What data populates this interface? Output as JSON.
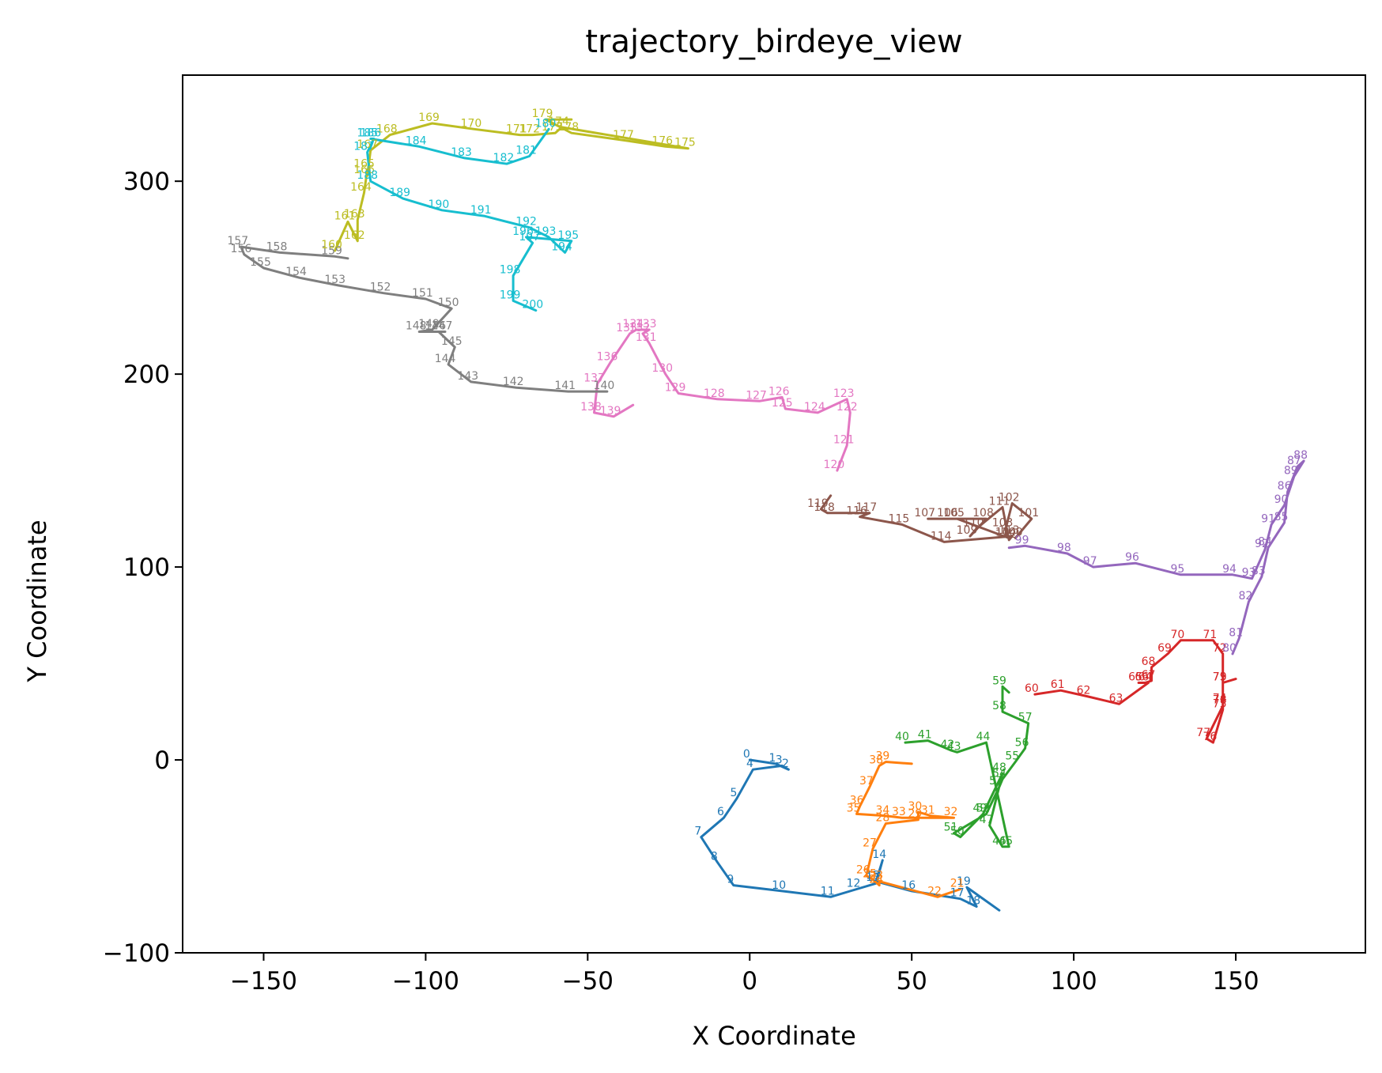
{
  "chart_data": {
    "type": "line",
    "title": "trajectory_birdeye_view",
    "xlabel": "X Coordinate",
    "ylabel": "Y Coordinate",
    "xlim": [
      -175,
      190
    ],
    "ylim": [
      -100,
      355
    ],
    "xticks": [
      -150,
      -100,
      -50,
      0,
      50,
      100,
      150
    ],
    "xtick_labels": [
      "−150",
      "−100",
      "−50",
      "0",
      "50",
      "100",
      "150"
    ],
    "yticks": [
      -100,
      0,
      100,
      200,
      300
    ],
    "ytick_labels": [
      "−100",
      "0",
      "100",
      "200",
      "300"
    ],
    "grid": false,
    "legend": "none",
    "series": [
      {
        "color": "#1f77b4",
        "points": [
          [
            0,
            0,
            "0"
          ],
          [
            8,
            -2,
            "1"
          ],
          [
            12,
            -5,
            "2"
          ],
          [
            10,
            -3,
            "3"
          ],
          [
            1,
            -5,
            "4"
          ],
          [
            -4,
            -20,
            "5"
          ],
          [
            -8,
            -30,
            "6"
          ],
          [
            -15,
            -40,
            "7"
          ],
          [
            -10,
            -53,
            "8"
          ],
          [
            -5,
            -65,
            "9"
          ],
          [
            10,
            -68,
            "10"
          ],
          [
            25,
            -71,
            "11"
          ],
          [
            33,
            -67,
            "12"
          ],
          [
            39,
            -64,
            "13"
          ],
          [
            41,
            -52,
            "14"
          ],
          [
            39,
            -63,
            "15"
          ],
          [
            50,
            -68,
            "16"
          ],
          [
            65,
            -72,
            "17"
          ],
          [
            70,
            -76,
            "18"
          ],
          [
            67,
            -66,
            "19"
          ],
          [
            77,
            -78,
            ""
          ]
        ]
      },
      {
        "color": "#ff7f0e",
        "points": [
          [
            65,
            -67,
            "21"
          ],
          [
            58,
            -71,
            "22"
          ],
          [
            40,
            -63,
            "23"
          ],
          [
            40,
            -65,
            "24"
          ],
          [
            38,
            -62,
            "25"
          ],
          [
            36,
            -60,
            "26"
          ],
          [
            38,
            -46,
            "27"
          ],
          [
            42,
            -33,
            "28"
          ],
          [
            52,
            -31,
            "29"
          ],
          [
            52,
            -27,
            "30"
          ],
          [
            56,
            -29,
            "31"
          ],
          [
            63,
            -30,
            "32"
          ],
          [
            47,
            -30,
            "33"
          ],
          [
            42,
            -29,
            "34"
          ],
          [
            33,
            -28,
            "35"
          ],
          [
            34,
            -24,
            "36"
          ],
          [
            37,
            -14,
            "37"
          ],
          [
            40,
            -3,
            "38"
          ],
          [
            42,
            -1,
            "39"
          ],
          [
            50,
            -2,
            ""
          ]
        ]
      },
      {
        "color": "#2ca02c",
        "points": [
          [
            48,
            9,
            "40"
          ],
          [
            55,
            10,
            "41"
          ],
          [
            62,
            5,
            "42"
          ],
          [
            64,
            4,
            "43"
          ],
          [
            73,
            9,
            "44"
          ],
          [
            80,
            -45,
            "45"
          ],
          [
            78,
            -45,
            "46"
          ],
          [
            74,
            -34,
            "47"
          ],
          [
            78,
            -7,
            "48"
          ],
          [
            72,
            -28,
            "49"
          ],
          [
            65,
            -40,
            "50"
          ],
          [
            63,
            -38,
            "51"
          ],
          [
            73,
            -28,
            "52"
          ],
          [
            77,
            -14,
            "53"
          ],
          [
            78,
            -10,
            "54"
          ],
          [
            82,
            -1,
            "55"
          ],
          [
            85,
            6,
            "56"
          ],
          [
            86,
            19,
            "57"
          ],
          [
            78,
            25,
            "58"
          ],
          [
            78,
            38,
            "59"
          ],
          [
            80,
            35,
            ""
          ]
        ]
      },
      {
        "color": "#d62728",
        "points": [
          [
            88,
            34,
            "60"
          ],
          [
            96,
            36,
            "61"
          ],
          [
            104,
            33,
            "62"
          ],
          [
            114,
            29,
            "63"
          ],
          [
            123,
            40,
            "64"
          ],
          [
            120,
            40,
            "65"
          ],
          [
            122,
            40,
            "66"
          ],
          [
            124,
            41,
            "67"
          ],
          [
            124,
            48,
            "68"
          ],
          [
            129,
            55,
            "69"
          ],
          [
            133,
            62,
            "70"
          ],
          [
            143,
            62,
            "71"
          ],
          [
            146,
            55,
            "72"
          ],
          [
            146,
            40,
            "73"
          ],
          [
            146,
            29,
            "74"
          ],
          [
            146,
            26,
            "75"
          ],
          [
            143,
            9,
            "76"
          ],
          [
            141,
            11,
            "77"
          ],
          [
            146,
            28,
            "78"
          ],
          [
            146,
            40,
            "79"
          ],
          [
            150,
            42,
            ""
          ]
        ]
      },
      {
        "color": "#9467bd",
        "points": [
          [
            149,
            55,
            "80"
          ],
          [
            151,
            63,
            "81"
          ],
          [
            154,
            82,
            "82"
          ],
          [
            158,
            95,
            "83"
          ],
          [
            160,
            110,
            "84"
          ],
          [
            165,
            123,
            "85"
          ],
          [
            166,
            139,
            "86"
          ],
          [
            169,
            152,
            "87"
          ],
          [
            171,
            155,
            "88"
          ],
          [
            168,
            147,
            "89"
          ],
          [
            165,
            132,
            "90"
          ],
          [
            161,
            122,
            "91"
          ],
          [
            159,
            109,
            "92"
          ],
          [
            155,
            94,
            "93"
          ],
          [
            149,
            96,
            "94"
          ],
          [
            133,
            96,
            "95"
          ],
          [
            119,
            102,
            "96"
          ],
          [
            106,
            100,
            "97"
          ],
          [
            98,
            107,
            "98"
          ],
          [
            85,
            111,
            "99"
          ],
          [
            80,
            110,
            ""
          ]
        ]
      },
      {
        "color": "#8c564b",
        "points": [
          [
            82,
            115,
            "100"
          ],
          [
            87,
            125,
            "101"
          ],
          [
            81,
            133,
            "102"
          ],
          [
            79,
            120,
            "103"
          ],
          [
            80,
            115,
            "104"
          ],
          [
            64,
            125,
            "105"
          ],
          [
            62,
            125,
            "106"
          ],
          [
            55,
            125,
            "107"
          ],
          [
            73,
            125,
            "108"
          ],
          [
            68,
            116,
            "109"
          ],
          [
            70,
            120,
            "110"
          ],
          [
            78,
            131,
            "111"
          ],
          [
            80,
            114,
            "112"
          ],
          [
            81,
            116,
            "113"
          ],
          [
            60,
            113,
            "114"
          ],
          [
            47,
            122,
            "115"
          ],
          [
            34,
            126,
            "116"
          ],
          [
            37,
            128,
            "117"
          ],
          [
            24,
            128,
            "118"
          ],
          [
            22,
            130,
            "119"
          ],
          [
            25,
            137,
            ""
          ]
        ]
      },
      {
        "color": "#e377c2",
        "points": [
          [
            27,
            150,
            "120"
          ],
          [
            30,
            163,
            "121"
          ],
          [
            31,
            180,
            "122"
          ],
          [
            30,
            187,
            "123"
          ],
          [
            21,
            180,
            "124"
          ],
          [
            11,
            182,
            "125"
          ],
          [
            10,
            188,
            "126"
          ],
          [
            3,
            186,
            "127"
          ],
          [
            -10,
            187,
            "128"
          ],
          [
            -22,
            190,
            "129"
          ],
          [
            -26,
            200,
            "130"
          ],
          [
            -31,
            216,
            "131"
          ],
          [
            -33,
            221,
            "132"
          ],
          [
            -31,
            223,
            "133"
          ],
          [
            -35,
            223,
            "134"
          ],
          [
            -37,
            221,
            "135"
          ],
          [
            -43,
            206,
            "136"
          ],
          [
            -47,
            195,
            "137"
          ],
          [
            -48,
            180,
            "138"
          ],
          [
            -42,
            178,
            "139"
          ],
          [
            -36,
            184,
            ""
          ]
        ]
      },
      {
        "color": "#7f7f7f",
        "points": [
          [
            -44,
            191,
            "140"
          ],
          [
            -56,
            191,
            "141"
          ],
          [
            -72,
            193,
            "142"
          ],
          [
            -86,
            196,
            "143"
          ],
          [
            -93,
            205,
            "144"
          ],
          [
            -91,
            214,
            "145"
          ],
          [
            -96,
            222,
            "146"
          ],
          [
            -94,
            222,
            "147"
          ],
          [
            -102,
            222,
            "148"
          ],
          [
            -98,
            223,
            "149"
          ],
          [
            -92,
            234,
            "150"
          ],
          [
            -100,
            239,
            "151"
          ],
          [
            -113,
            242,
            "152"
          ],
          [
            -127,
            246,
            "153"
          ],
          [
            -139,
            250,
            "154"
          ],
          [
            -150,
            255,
            "155"
          ],
          [
            -156,
            262,
            "156"
          ],
          [
            -157,
            266,
            "157"
          ],
          [
            -145,
            263,
            "158"
          ],
          [
            -128,
            261,
            "159"
          ],
          [
            -124,
            260,
            ""
          ]
        ]
      },
      {
        "color": "#bcbd22",
        "points": [
          [
            -128,
            264,
            "160"
          ],
          [
            -124,
            279,
            "161"
          ],
          [
            -121,
            269,
            "162"
          ],
          [
            -121,
            280,
            "163"
          ],
          [
            -119,
            294,
            "164"
          ],
          [
            -118,
            306,
            "165"
          ],
          [
            -118,
            303,
            "166"
          ],
          [
            -117,
            316,
            "167"
          ],
          [
            -111,
            324,
            "168"
          ],
          [
            -98,
            330,
            "169"
          ],
          [
            -85,
            327,
            "170"
          ],
          [
            -71,
            324,
            "171"
          ],
          [
            -67,
            324,
            "172"
          ],
          [
            -60,
            325,
            "173"
          ],
          [
            -58,
            328,
            "174"
          ],
          [
            -19,
            317,
            "175"
          ],
          [
            -26,
            318,
            "176"
          ],
          [
            -38,
            321,
            "177"
          ],
          [
            -55,
            325,
            "178"
          ],
          [
            -63,
            332,
            "179"
          ],
          [
            -55,
            332,
            ""
          ]
        ]
      },
      {
        "color": "#17becf",
        "points": [
          [
            -62,
            327,
            "180"
          ],
          [
            -68,
            313,
            "181"
          ],
          [
            -75,
            309,
            "182"
          ],
          [
            -88,
            312,
            "183"
          ],
          [
            -102,
            318,
            "184"
          ],
          [
            -117,
            322,
            "185"
          ],
          [
            -116,
            322,
            "186"
          ],
          [
            -118,
            315,
            "187"
          ],
          [
            -117,
            300,
            "188"
          ],
          [
            -107,
            291,
            "189"
          ],
          [
            -95,
            285,
            "190"
          ],
          [
            -82,
            282,
            "191"
          ],
          [
            -68,
            276,
            "192"
          ],
          [
            -62,
            271,
            "193"
          ],
          [
            -57,
            263,
            "194"
          ],
          [
            -55,
            269,
            "195"
          ],
          [
            -69,
            271,
            "196"
          ],
          [
            -67,
            268,
            "197"
          ],
          [
            -73,
            251,
            "198"
          ],
          [
            -73,
            238,
            "199"
          ],
          [
            -66,
            233,
            "200"
          ]
        ]
      }
    ]
  }
}
